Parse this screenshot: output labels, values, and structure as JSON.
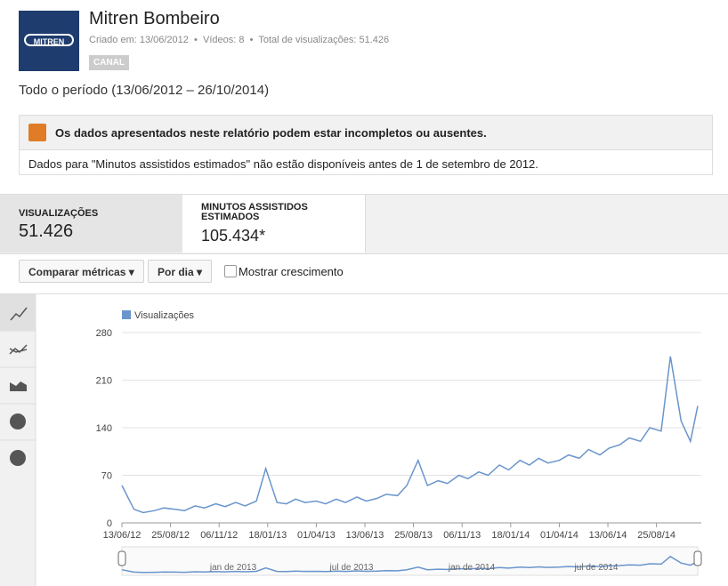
{
  "header": {
    "logo": "MITREN",
    "title": "Mitren Bombeiro",
    "created": "Criado em: 13/06/2012",
    "videos": "Vídeos: 8",
    "total": "Total de visualizações: 51.426",
    "badge": "CANAL"
  },
  "period": "Todo o período (13/06/2012 – 26/10/2014)",
  "alert": {
    "title": "Os dados apresentados neste relatório podem estar incompletos ou ausentes.",
    "text": "Dados para \"Minutos assistidos estimados\" não estão disponíveis antes de 1 de setembro de 2012."
  },
  "metrics": [
    {
      "label": "VISUALIZAÇÕES",
      "value": "51.426"
    },
    {
      "label": "MINUTOS ASSISTIDOS ESTIMADOS",
      "value": "105.434*"
    }
  ],
  "controls": {
    "compare": "Comparar métricas",
    "period": "Por dia",
    "growth": "Mostrar crescimento"
  },
  "chart_data": {
    "type": "line",
    "grid": true,
    "x": [
      "13/06/12",
      "01/07/12",
      "15/07/12",
      "01/08/12",
      "15/08/12",
      "01/09/12",
      "15/09/12",
      "01/10/12",
      "15/10/12",
      "01/11/12",
      "15/11/12",
      "01/12/12",
      "15/12/12",
      "01/01/13",
      "15/01/13",
      "01/02/13",
      "15/02/13",
      "01/03/13",
      "15/03/13",
      "01/04/13",
      "15/04/13",
      "01/05/13",
      "15/05/13",
      "01/06/13",
      "15/06/13",
      "01/07/13",
      "15/07/13",
      "01/08/13",
      "15/08/13",
      "01/09/13",
      "15/09/13",
      "01/10/13",
      "15/10/13",
      "01/11/13",
      "15/11/13",
      "01/12/13",
      "15/12/13",
      "01/01/14",
      "15/01/14",
      "01/02/14",
      "15/02/14",
      "01/03/14",
      "15/03/14",
      "01/04/14",
      "15/04/14",
      "01/05/14",
      "15/05/14",
      "01/06/14",
      "15/06/14",
      "01/07/14",
      "15/07/14",
      "01/08/14",
      "15/08/14",
      "01/09/14",
      "15/09/14",
      "01/10/14",
      "15/10/14",
      "26/10/14"
    ],
    "series": [
      {
        "name": "Visualizações",
        "color": "#6a95cc",
        "values": [
          55,
          20,
          15,
          18,
          22,
          20,
          18,
          25,
          22,
          28,
          24,
          30,
          25,
          32,
          80,
          30,
          28,
          35,
          30,
          32,
          28,
          35,
          30,
          38,
          32,
          36,
          42,
          40,
          55,
          92,
          55,
          62,
          58,
          70,
          65,
          75,
          70,
          85,
          78,
          92,
          85,
          95,
          88,
          92,
          100,
          95,
          108,
          100,
          110,
          115,
          125,
          120,
          140,
          135,
          245,
          150,
          120,
          172
        ]
      }
    ],
    "xlim": [
      "13/06/12",
      "26/10/14"
    ],
    "xticks": [
      "13/06/12",
      "25/08/12",
      "06/11/12",
      "18/01/13",
      "01/04/13",
      "13/06/13",
      "25/08/13",
      "06/11/13",
      "18/01/14",
      "01/04/14",
      "13/06/14",
      "25/08/14"
    ],
    "ylim": [
      0,
      280
    ],
    "yticks": [
      0,
      70,
      140,
      210,
      280
    ],
    "navigator_labels": [
      "jan de 2013",
      "jul de 2013",
      "jan de 2014",
      "jul de 2014"
    ]
  }
}
